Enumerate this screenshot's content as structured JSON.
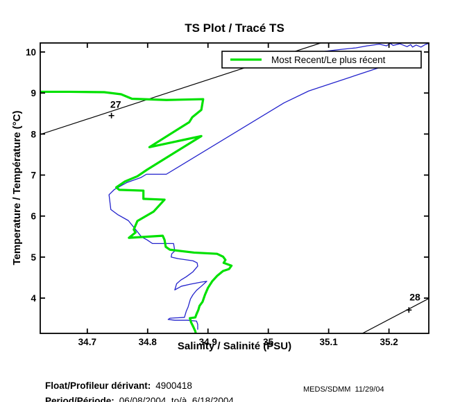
{
  "title": "TS Plot / Tracé TS",
  "axes": {
    "x_label": "Salinity / Salinité (PSU)",
    "y_label": "Temperature / Température (°C)"
  },
  "legend": {
    "label": "Most Recent/Le plus récent"
  },
  "footer": {
    "float_label": "Float/Profileur dérivant:",
    "float_value": "4900418",
    "period_label": "Period/Période:",
    "period_value": "06/08/2004  to/à  6/18/2004",
    "credit": "MEDS/SDMM  11/29/04"
  },
  "chart_data": {
    "type": "line",
    "title": "TS Plot / Tracé TS",
    "xlabel": "Salinity / Salinité (PSU)",
    "ylabel": "Temperature / Température (°C)",
    "xlim": [
      34.622,
      35.266
    ],
    "ylim": [
      3.14,
      10.22
    ],
    "x_ticks": [
      34.7,
      34.8,
      34.9,
      35,
      35.1,
      35.2
    ],
    "y_ticks": [
      4,
      5,
      6,
      7,
      8,
      9,
      10
    ],
    "grid": false,
    "legend_position": "top-right-inside",
    "colors": {
      "recent": "#00e100",
      "previous": "#2222cc",
      "contour": "#000000"
    },
    "series": [
      {
        "name": "Most Recent/Le plus récent",
        "color": "#00e100",
        "width": 3.2,
        "in_legend": true,
        "points": [
          [
            34.622,
            9.03
          ],
          [
            34.67,
            9.03
          ],
          [
            34.728,
            9.02
          ],
          [
            34.756,
            8.97
          ],
          [
            34.774,
            8.86
          ],
          [
            34.831,
            8.83
          ],
          [
            34.892,
            8.85
          ],
          [
            34.889,
            8.59
          ],
          [
            34.874,
            8.41
          ],
          [
            34.869,
            8.29
          ],
          [
            34.803,
            7.68
          ],
          [
            34.889,
            7.95
          ],
          [
            34.799,
            7.13
          ],
          [
            34.783,
            6.97
          ],
          [
            34.762,
            6.84
          ],
          [
            34.748,
            6.7
          ],
          [
            34.753,
            6.64
          ],
          [
            34.793,
            6.62
          ],
          [
            34.793,
            6.42
          ],
          [
            34.828,
            6.4
          ],
          [
            34.81,
            6.11
          ],
          [
            34.783,
            5.88
          ],
          [
            34.777,
            5.67
          ],
          [
            34.78,
            5.6
          ],
          [
            34.769,
            5.47
          ],
          [
            34.825,
            5.52
          ],
          [
            34.828,
            5.42
          ],
          [
            34.83,
            5.25
          ],
          [
            34.837,
            5.18
          ],
          [
            34.877,
            5.11
          ],
          [
            34.915,
            5.08
          ],
          [
            34.925,
            5.01
          ],
          [
            34.929,
            4.93
          ],
          [
            34.926,
            4.86
          ],
          [
            34.939,
            4.79
          ],
          [
            34.935,
            4.71
          ],
          [
            34.925,
            4.66
          ],
          [
            34.915,
            4.54
          ],
          [
            34.907,
            4.41
          ],
          [
            34.9,
            4.25
          ],
          [
            34.895,
            4.08
          ],
          [
            34.891,
            3.91
          ],
          [
            34.886,
            3.81
          ],
          [
            34.884,
            3.71
          ],
          [
            34.881,
            3.61
          ],
          [
            34.879,
            3.53
          ],
          [
            34.87,
            3.51
          ],
          [
            34.872,
            3.41
          ],
          [
            34.876,
            3.29
          ],
          [
            34.879,
            3.19
          ],
          [
            34.88,
            3.13
          ]
        ]
      },
      {
        "name": "previous-profile",
        "color": "#2222cc",
        "width": 1.3,
        "in_legend": false,
        "points": [
          [
            35.266,
            10.21
          ],
          [
            35.26,
            10.18
          ],
          [
            35.253,
            10.12
          ],
          [
            35.245,
            10.17
          ],
          [
            35.239,
            10.12
          ],
          [
            35.236,
            10.18
          ],
          [
            35.23,
            10.13
          ],
          [
            35.225,
            10.16
          ],
          [
            35.218,
            10.2
          ],
          [
            35.207,
            10.16
          ],
          [
            35.202,
            10.21
          ],
          [
            35.196,
            10.15
          ],
          [
            35.184,
            10.19
          ],
          [
            35.164,
            10.15
          ],
          [
            35.145,
            10.1
          ],
          [
            35.118,
            10.06
          ],
          [
            35.09,
            10.01
          ],
          [
            35.182,
            9.61
          ],
          [
            35.067,
            9.05
          ],
          [
            35.026,
            8.76
          ],
          [
            34.831,
            7.02
          ],
          [
            34.798,
            7.02
          ],
          [
            34.789,
            6.94
          ],
          [
            34.766,
            6.82
          ],
          [
            34.745,
            6.65
          ],
          [
            34.736,
            6.52
          ],
          [
            34.739,
            6.16
          ],
          [
            34.751,
            6.03
          ],
          [
            34.768,
            5.89
          ],
          [
            34.778,
            5.71
          ],
          [
            34.79,
            5.49
          ],
          [
            34.799,
            5.42
          ],
          [
            34.808,
            5.33
          ],
          [
            34.843,
            5.33
          ],
          [
            34.845,
            5.15
          ],
          [
            34.84,
            5.08
          ],
          [
            34.839,
            5.0
          ],
          [
            34.851,
            4.96
          ],
          [
            34.875,
            4.91
          ],
          [
            34.882,
            4.86
          ],
          [
            34.883,
            4.78
          ],
          [
            34.875,
            4.64
          ],
          [
            34.864,
            4.52
          ],
          [
            34.855,
            4.44
          ],
          [
            34.848,
            4.35
          ],
          [
            34.845,
            4.2
          ],
          [
            34.856,
            4.29
          ],
          [
            34.871,
            4.34
          ],
          [
            34.889,
            4.39
          ],
          [
            34.898,
            4.41
          ],
          [
            34.889,
            4.29
          ],
          [
            34.881,
            4.19
          ],
          [
            34.875,
            4.08
          ],
          [
            34.871,
            3.98
          ],
          [
            34.869,
            3.88
          ],
          [
            34.867,
            3.78
          ],
          [
            34.864,
            3.68
          ],
          [
            34.862,
            3.58
          ],
          [
            34.861,
            3.53
          ],
          [
            34.837,
            3.51
          ],
          [
            34.834,
            3.48
          ],
          [
            34.845,
            3.46
          ],
          [
            34.866,
            3.46
          ],
          [
            34.881,
            3.44
          ],
          [
            34.883,
            3.36
          ],
          [
            34.883,
            3.24
          ]
        ]
      }
    ],
    "contours": [
      {
        "label": "27",
        "points": [
          [
            34.622,
            7.99
          ],
          [
            35.087,
            10.22
          ]
        ],
        "label_pos": [
          34.747,
          8.64
        ],
        "marker_pos": [
          34.74,
          8.45
        ]
      },
      {
        "label": "28",
        "points": [
          [
            35.156,
            3.14
          ],
          [
            35.266,
            3.99
          ]
        ],
        "label_pos": [
          35.243,
          3.94
        ],
        "marker_pos": [
          35.233,
          3.71
        ]
      }
    ]
  }
}
